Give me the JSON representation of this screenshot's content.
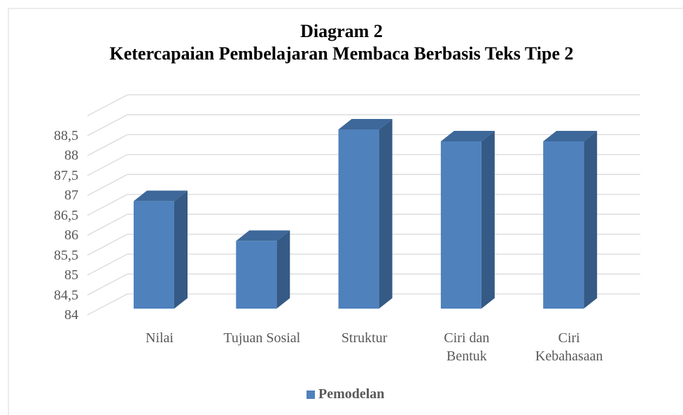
{
  "chart_data": {
    "type": "bar3d",
    "title": "Diagram 2",
    "subtitle": "Ketercapaian Pembelajaran Membaca Berbasis Teks Tipe 2",
    "categories": [
      "Nilai",
      "Tujuan Sosial",
      "Struktur",
      "Ciri dan Bentuk",
      "Ciri Kebahasaan"
    ],
    "series": [
      {
        "name": "Pemodelan",
        "color": "#4f81bd",
        "values": [
          86.7,
          85.7,
          88.5,
          88.2,
          88.2
        ]
      }
    ],
    "ylim": [
      84,
      89
    ],
    "yticks": [
      84,
      {
        "value": 84.5,
        "label": "84,5"
      },
      85,
      {
        "value": 85.5,
        "label": "85,5"
      },
      86,
      {
        "value": 86.5,
        "label": "86,5"
      },
      87,
      {
        "value": 87.5,
        "label": "87,5"
      },
      88,
      {
        "value": 88.5,
        "label": "88,5"
      }
    ],
    "grid": true,
    "legend": "bottom"
  }
}
